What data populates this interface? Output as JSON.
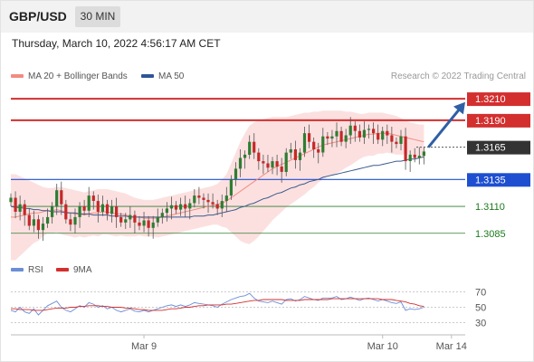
{
  "header": {
    "symbol": "GBP/USD",
    "timeframe": "30 MIN"
  },
  "datetime": "Thursday, March 10, 2022 4:56:17 AM CET",
  "credit": "Research © 2022 Trading Central",
  "legend": {
    "ma20_bb": "MA 20 + Bollinger Bands",
    "ma50": "MA 50",
    "rsi": "RSI",
    "rsi_ma": "9MA"
  },
  "colors": {
    "up": "#2e7d32",
    "down": "#c62828",
    "resistance": "#d32f2f",
    "support": "#1e4fd0",
    "target": "#2e7d32",
    "bands": "#fbd5d5",
    "ma20": "#f28b82",
    "ma50": "#3a5a8c",
    "rsi": "#6b8fd6",
    "rsi_ma": "#d32f2f",
    "arrow": "#2f5fa5",
    "current": "#333333"
  },
  "chart_data": [
    {
      "type": "candlestick",
      "ylim": [
        1.3068,
        1.3221
      ],
      "xlim": [
        0,
        99
      ],
      "x_ticks": [
        {
          "index": 29,
          "label": "Mar 9"
        },
        {
          "index": 81,
          "label": "Mar 10"
        },
        {
          "index": 96,
          "label": "Mar 14"
        }
      ],
      "levels": [
        {
          "value": 1.321,
          "label": "1.3210",
          "kind": "resistance"
        },
        {
          "value": 1.319,
          "label": "1.3190",
          "kind": "resistance"
        },
        {
          "value": 1.3165,
          "label": "1.3165",
          "kind": "current"
        },
        {
          "value": 1.3135,
          "label": "1.3135",
          "kind": "support"
        },
        {
          "value": 1.311,
          "label": "1.3110",
          "kind": "target"
        },
        {
          "value": 1.3085,
          "label": "1.3085",
          "kind": "target"
        }
      ],
      "closes": [
        1.3118,
        1.3105,
        1.3112,
        1.3102,
        1.3092,
        1.3098,
        1.3088,
        1.3094,
        1.31,
        1.311,
        1.3125,
        1.3112,
        1.3098,
        1.3093,
        1.31,
        1.311,
        1.3106,
        1.312,
        1.3115,
        1.3105,
        1.3112,
        1.3103,
        1.311,
        1.31,
        1.3095,
        1.3098,
        1.3102,
        1.3095,
        1.3092,
        1.3097,
        1.309,
        1.3095,
        1.31,
        1.3104,
        1.3108,
        1.3111,
        1.3107,
        1.3112,
        1.3108,
        1.3113,
        1.312,
        1.3118,
        1.3116,
        1.3114,
        1.3112,
        1.3108,
        1.3115,
        1.312,
        1.3135,
        1.3145,
        1.3155,
        1.3158,
        1.317,
        1.316,
        1.3152,
        1.315,
        1.3146,
        1.3152,
        1.3147,
        1.3142,
        1.316,
        1.3163,
        1.3153,
        1.316,
        1.3178,
        1.317,
        1.3163,
        1.316,
        1.3175,
        1.3173,
        1.3175,
        1.318,
        1.317,
        1.3176,
        1.3185,
        1.318,
        1.3174,
        1.3181,
        1.3182,
        1.3178,
        1.3172,
        1.318,
        1.3176,
        1.317,
        1.3168,
        1.3175,
        1.3152,
        1.3158,
        1.3155,
        1.3157,
        1.3161
      ],
      "ma20": [
        1.31,
        1.31,
        1.3101,
        1.3102,
        1.3103,
        1.3104,
        1.3104,
        1.3105,
        1.3106,
        1.3106,
        1.3107,
        1.3106,
        1.3105,
        1.3104,
        1.3103,
        1.3103,
        1.3102,
        1.3103,
        1.3104,
        1.3104,
        1.3105,
        1.3105,
        1.3104,
        1.3103,
        1.3103,
        1.3102,
        1.3101,
        1.31,
        1.31,
        1.3099,
        1.3099,
        1.3099,
        1.3099,
        1.31,
        1.3101,
        1.3102,
        1.3103,
        1.3104,
        1.3105,
        1.3106,
        1.3107,
        1.3108,
        1.3109,
        1.311,
        1.3111,
        1.3112,
        1.3113,
        1.3115,
        1.3118,
        1.3121,
        1.3124,
        1.3127,
        1.313,
        1.3133,
        1.3136,
        1.3139,
        1.3142,
        1.3145,
        1.3147,
        1.3149,
        1.3151,
        1.3153,
        1.3155,
        1.3157,
        1.3159,
        1.3161,
        1.3163,
        1.3165,
        1.3167,
        1.3168,
        1.3169,
        1.317,
        1.3171,
        1.3172,
        1.3173,
        1.3174,
        1.3175,
        1.3176,
        1.3177,
        1.3177,
        1.3178,
        1.3178,
        1.3178,
        1.3177,
        1.3176,
        1.3175,
        1.3174,
        1.3173,
        1.3172,
        1.3171,
        1.317
      ],
      "bb_upper": [
        1.314,
        1.314,
        1.3138,
        1.3136,
        1.3134,
        1.3132,
        1.313,
        1.3128,
        1.3127,
        1.3127,
        1.3128,
        1.3128,
        1.3127,
        1.3126,
        1.3125,
        1.3124,
        1.3123,
        1.3124,
        1.3125,
        1.3126,
        1.3126,
        1.3126,
        1.3125,
        1.3124,
        1.3123,
        1.3122,
        1.312,
        1.3118,
        1.3117,
        1.3116,
        1.3116,
        1.3116,
        1.3117,
        1.3118,
        1.3119,
        1.312,
        1.3121,
        1.3122,
        1.3123,
        1.3124,
        1.3125,
        1.3126,
        1.3127,
        1.3128,
        1.3129,
        1.3131,
        1.3135,
        1.314,
        1.315,
        1.316,
        1.317,
        1.3178,
        1.3185,
        1.3188,
        1.319,
        1.3191,
        1.3192,
        1.3193,
        1.3193,
        1.3193,
        1.3193,
        1.3194,
        1.3195,
        1.3196,
        1.3197,
        1.3197,
        1.3198,
        1.3198,
        1.3199,
        1.3199,
        1.3199,
        1.3199,
        1.3199,
        1.3198,
        1.3198,
        1.3197,
        1.3196,
        1.3196,
        1.3197,
        1.3197,
        1.3197,
        1.3197,
        1.3196,
        1.3195,
        1.3194,
        1.3192,
        1.319,
        1.3188,
        1.3187,
        1.3186,
        1.3186
      ],
      "bb_lower": [
        1.306,
        1.306,
        1.3064,
        1.3068,
        1.3072,
        1.3076,
        1.3078,
        1.3082,
        1.3085,
        1.3085,
        1.3086,
        1.3084,
        1.3083,
        1.3082,
        1.3081,
        1.3082,
        1.3081,
        1.3082,
        1.3083,
        1.3082,
        1.3084,
        1.3084,
        1.3083,
        1.3082,
        1.3083,
        1.3082,
        1.3082,
        1.3082,
        1.3083,
        1.3082,
        1.3082,
        1.3082,
        1.3081,
        1.3082,
        1.3083,
        1.3084,
        1.3085,
        1.3086,
        1.3087,
        1.3088,
        1.3089,
        1.309,
        1.3091,
        1.3092,
        1.3093,
        1.3093,
        1.3091,
        1.309,
        1.3086,
        1.3082,
        1.3078,
        1.3076,
        1.3075,
        1.3078,
        1.3082,
        1.3087,
        1.3092,
        1.3097,
        1.3101,
        1.3105,
        1.3109,
        1.3112,
        1.3115,
        1.3118,
        1.3121,
        1.3125,
        1.3128,
        1.3132,
        1.3135,
        1.3137,
        1.3139,
        1.3141,
        1.3143,
        1.3146,
        1.3148,
        1.3151,
        1.3154,
        1.3156,
        1.3157,
        1.3157,
        1.3159,
        1.3159,
        1.316,
        1.3159,
        1.3158,
        1.3158,
        1.3158,
        1.3158,
        1.3157,
        1.3156,
        1.3154
      ],
      "ma50": [
        1.311,
        1.3109,
        1.3109,
        1.3108,
        1.3108,
        1.3107,
        1.3107,
        1.3106,
        1.3106,
        1.3105,
        1.3105,
        1.3105,
        1.3104,
        1.3104,
        1.3104,
        1.3103,
        1.3103,
        1.3103,
        1.3102,
        1.3102,
        1.3102,
        1.3102,
        1.3101,
        1.3101,
        1.3101,
        1.3101,
        1.31,
        1.31,
        1.31,
        1.31,
        1.31,
        1.31,
        1.31,
        1.31,
        1.31,
        1.31,
        1.31,
        1.31,
        1.31,
        1.31,
        1.3101,
        1.3101,
        1.3101,
        1.3102,
        1.3102,
        1.3103,
        1.3104,
        1.3105,
        1.3106,
        1.3107,
        1.3109,
        1.311,
        1.3112,
        1.3113,
        1.3115,
        1.3117,
        1.3118,
        1.312,
        1.3122,
        1.3123,
        1.3125,
        1.3127,
        1.3128,
        1.313,
        1.3131,
        1.3133,
        1.3134,
        1.3135,
        1.3137,
        1.3138,
        1.3139,
        1.314,
        1.3141,
        1.3142,
        1.3143,
        1.3144,
        1.3145,
        1.3146,
        1.3147,
        1.3148,
        1.3148,
        1.3149,
        1.315,
        1.3151,
        1.3152,
        1.3152,
        1.3153,
        1.3154,
        1.3154,
        1.3155,
        1.3156
      ],
      "projection": {
        "from": {
          "index": 91,
          "value": 1.3165
        },
        "to": {
          "index": 99,
          "value": 1.3207
        }
      }
    },
    {
      "type": "line",
      "ylim": [
        20,
        80
      ],
      "y_ticks": [
        70,
        50,
        30
      ],
      "series": [
        {
          "name": "RSI",
          "values": [
            46,
            44,
            50,
            44,
            42,
            48,
            40,
            46,
            52,
            55,
            58,
            50,
            46,
            44,
            48,
            52,
            50,
            56,
            54,
            50,
            52,
            48,
            50,
            46,
            44,
            46,
            48,
            45,
            44,
            46,
            44,
            46,
            48,
            50,
            52,
            53,
            51,
            53,
            51,
            53,
            56,
            55,
            54,
            53,
            52,
            50,
            54,
            57,
            60,
            62,
            64,
            65,
            68,
            62,
            58,
            57,
            56,
            58,
            56,
            54,
            60,
            61,
            58,
            60,
            64,
            62,
            60,
            59,
            62,
            62,
            62,
            64,
            60,
            61,
            63,
            61,
            59,
            61,
            62,
            60,
            58,
            60,
            58,
            56,
            55,
            57,
            46,
            48,
            47,
            48,
            50
          ]
        },
        {
          "name": "9MA",
          "values": [
            48,
            48,
            47,
            47,
            47,
            46,
            46,
            46,
            47,
            48,
            49,
            49,
            49,
            50,
            50,
            51,
            51,
            52,
            52,
            52,
            51,
            51,
            50,
            50,
            50,
            49,
            49,
            48,
            47,
            47,
            46,
            46,
            46,
            46,
            47,
            48,
            48,
            49,
            50,
            50,
            51,
            52,
            52,
            53,
            53,
            53,
            53,
            54,
            54,
            55,
            56,
            57,
            58,
            59,
            59,
            60,
            60,
            60,
            60,
            60,
            59,
            59,
            59,
            59,
            60,
            60,
            60,
            60,
            60,
            60,
            61,
            61,
            61,
            61,
            61,
            61,
            61,
            61,
            61,
            61,
            61,
            60,
            60,
            60,
            59,
            58,
            57,
            55,
            54,
            52,
            51
          ]
        }
      ]
    }
  ]
}
